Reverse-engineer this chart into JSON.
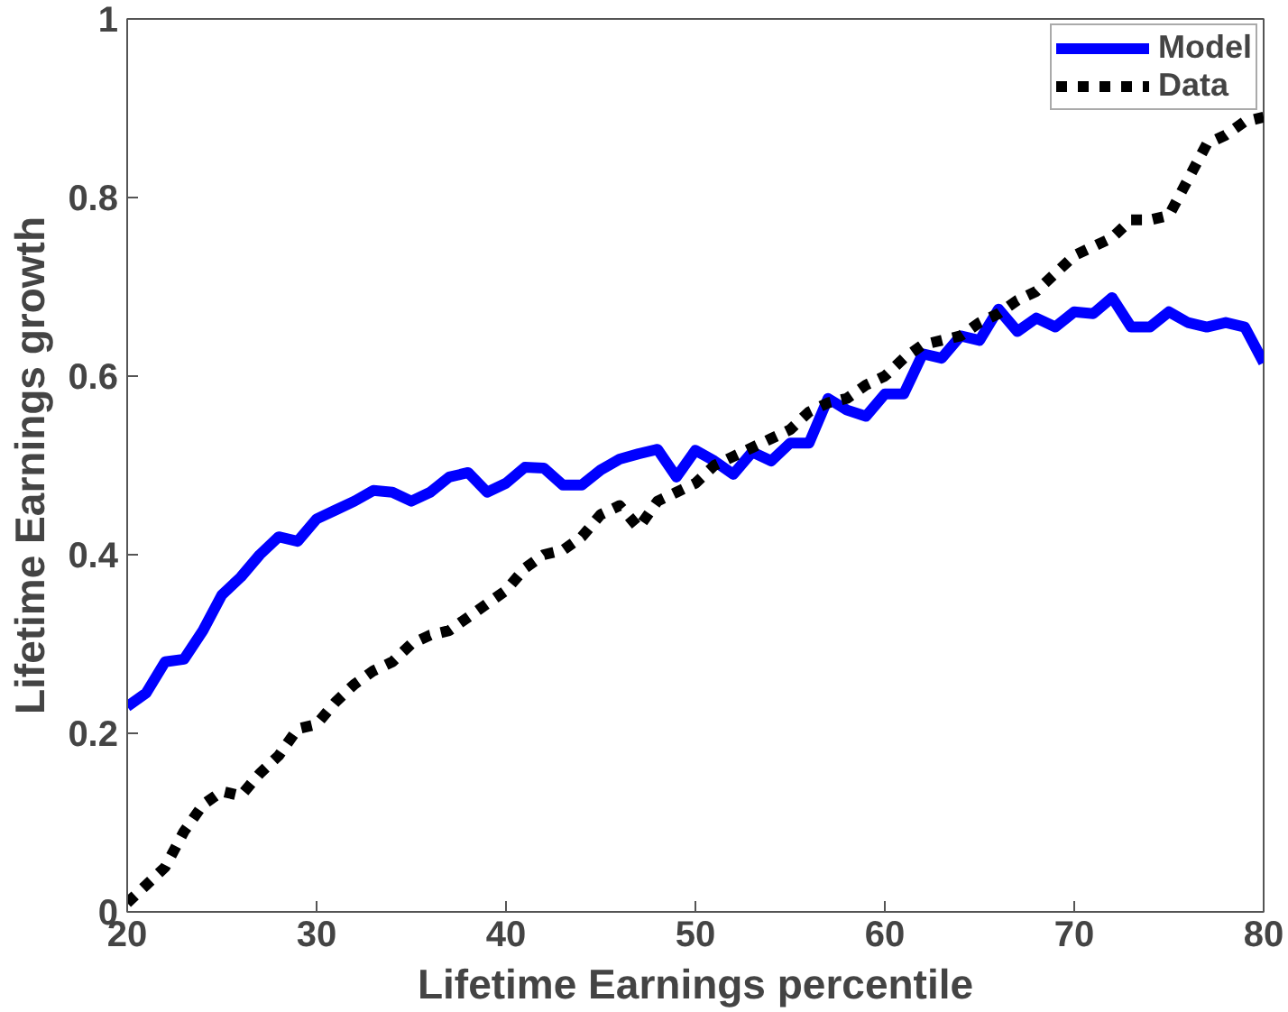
{
  "chart_data": {
    "type": "line",
    "xlabel": "Lifetime Earnings percentile",
    "ylabel": "Lifetime Earnings growth",
    "x": [
      20,
      21,
      22,
      23,
      24,
      25,
      26,
      27,
      28,
      29,
      30,
      31,
      32,
      33,
      34,
      35,
      36,
      37,
      38,
      39,
      40,
      41,
      42,
      43,
      44,
      45,
      46,
      47,
      48,
      49,
      50,
      51,
      52,
      53,
      54,
      55,
      56,
      57,
      58,
      59,
      60,
      61,
      62,
      63,
      64,
      65,
      66,
      67,
      68,
      69,
      70,
      71,
      72,
      73,
      74,
      75,
      76,
      77,
      78,
      79,
      80
    ],
    "series": [
      {
        "name": "Model",
        "color": "#0000ff",
        "line_style": "solid",
        "values": [
          0.23,
          0.245,
          0.28,
          0.283,
          0.315,
          0.355,
          0.375,
          0.4,
          0.42,
          0.415,
          0.44,
          0.45,
          0.46,
          0.472,
          0.47,
          0.46,
          0.47,
          0.487,
          0.492,
          0.47,
          0.48,
          0.498,
          0.497,
          0.478,
          0.478,
          0.495,
          0.507,
          0.513,
          0.518,
          0.487,
          0.517,
          0.505,
          0.49,
          0.515,
          0.505,
          0.525,
          0.525,
          0.575,
          0.562,
          0.555,
          0.58,
          0.58,
          0.625,
          0.62,
          0.645,
          0.64,
          0.675,
          0.65,
          0.665,
          0.655,
          0.672,
          0.67,
          0.688,
          0.655,
          0.655,
          0.672,
          0.66,
          0.655,
          0.66,
          0.655,
          0.615
        ]
      },
      {
        "name": "Data",
        "color": "#000000",
        "line_style": "dotted",
        "values": [
          0.01,
          0.03,
          0.05,
          0.09,
          0.12,
          0.135,
          0.13,
          0.155,
          0.175,
          0.205,
          0.21,
          0.235,
          0.255,
          0.27,
          0.28,
          0.3,
          0.31,
          0.315,
          0.33,
          0.345,
          0.36,
          0.385,
          0.4,
          0.405,
          0.42,
          0.445,
          0.455,
          0.43,
          0.46,
          0.47,
          0.48,
          0.5,
          0.51,
          0.52,
          0.53,
          0.54,
          0.56,
          0.57,
          0.575,
          0.59,
          0.6,
          0.62,
          0.635,
          0.64,
          0.645,
          0.66,
          0.67,
          0.685,
          0.695,
          0.715,
          0.735,
          0.745,
          0.755,
          0.775,
          0.775,
          0.78,
          0.82,
          0.86,
          0.87,
          0.885,
          0.89
        ]
      }
    ],
    "xlim": [
      20,
      80
    ],
    "xticks": [
      20,
      30,
      40,
      50,
      60,
      70,
      80
    ],
    "ylim": [
      0,
      1
    ],
    "yticks": [
      0,
      0.2,
      0.4,
      0.6,
      0.8,
      1
    ],
    "grid": false,
    "legend": "top right"
  }
}
